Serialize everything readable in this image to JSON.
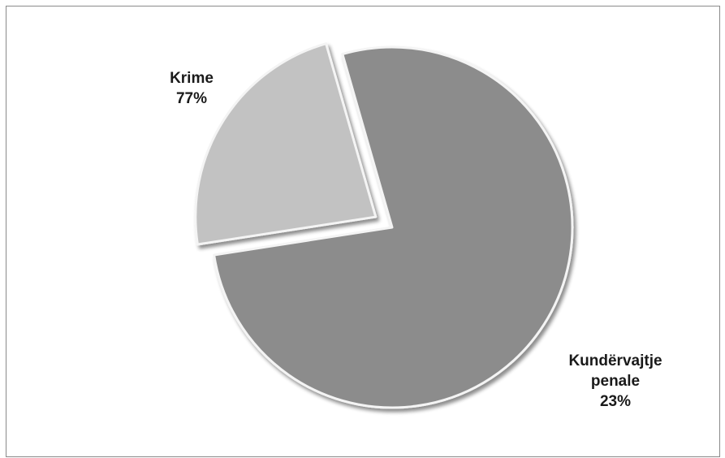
{
  "chart_data": {
    "type": "pie",
    "title": "",
    "categories": [
      "Krime",
      "Kundërvajtje penale"
    ],
    "values": [
      77,
      23
    ],
    "labels": [
      {
        "lines": [
          "Krime",
          "77%"
        ]
      },
      {
        "lines": [
          "Kundërvajtje",
          "penale",
          "23%"
        ]
      }
    ],
    "colors": [
      "#8c8c8c",
      "#c2c2c2"
    ],
    "exploded": [
      false,
      true
    ],
    "legend": "none"
  }
}
